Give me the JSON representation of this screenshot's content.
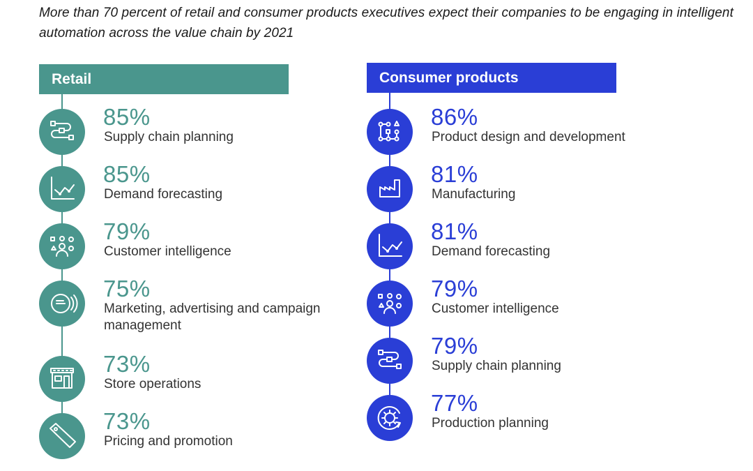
{
  "title": "More than 70 percent of retail and consumer products executives expect their companies to be engaging in intelligent automation across the value chain by 2021",
  "colors": {
    "retail": "#4a968d",
    "consumer": "#2a3ed6"
  },
  "panels": [
    {
      "name": "Retail",
      "items": [
        {
          "value": "85%",
          "label": "Supply chain planning",
          "icon": "supply-chain-icon"
        },
        {
          "value": "85%",
          "label": "Demand forecasting",
          "icon": "line-chart-icon"
        },
        {
          "value": "79%",
          "label": "Customer intelligence",
          "icon": "people-icon"
        },
        {
          "value": "75%",
          "label": "Marketing, advertising and campaign management",
          "icon": "speech-bubble-icon"
        },
        {
          "value": "73%",
          "label": "Store operations",
          "icon": "store-icon"
        },
        {
          "value": "73%",
          "label": "Pricing and promotion",
          "icon": "price-tag-icon"
        }
      ]
    },
    {
      "name": "Consumer products",
      "items": [
        {
          "value": "86%",
          "label": "Product design and development",
          "icon": "design-network-icon"
        },
        {
          "value": "81%",
          "label": "Manufacturing",
          "icon": "factory-icon"
        },
        {
          "value": "81%",
          "label": "Demand forecasting",
          "icon": "line-chart-icon"
        },
        {
          "value": "79%",
          "label": "Customer intelligence",
          "icon": "people-icon"
        },
        {
          "value": "79%",
          "label": "Supply chain planning",
          "icon": "supply-chain-icon"
        },
        {
          "value": "77%",
          "label": "Production planning",
          "icon": "gear-cycle-icon"
        }
      ]
    }
  ],
  "chart_data": {
    "type": "table",
    "title": "More than 70 percent of retail and consumer products executives expect their companies to be engaging in intelligent automation across the value chain by 2021",
    "series": [
      {
        "name": "Retail",
        "categories": [
          "Supply chain planning",
          "Demand forecasting",
          "Customer intelligence",
          "Marketing, advertising and campaign management",
          "Store operations",
          "Pricing and promotion"
        ],
        "values": [
          85,
          85,
          79,
          75,
          73,
          73
        ]
      },
      {
        "name": "Consumer products",
        "categories": [
          "Product design and development",
          "Manufacturing",
          "Demand forecasting",
          "Customer intelligence",
          "Supply chain planning",
          "Production planning"
        ],
        "values": [
          86,
          81,
          81,
          79,
          79,
          77
        ]
      }
    ],
    "unit": "%"
  }
}
